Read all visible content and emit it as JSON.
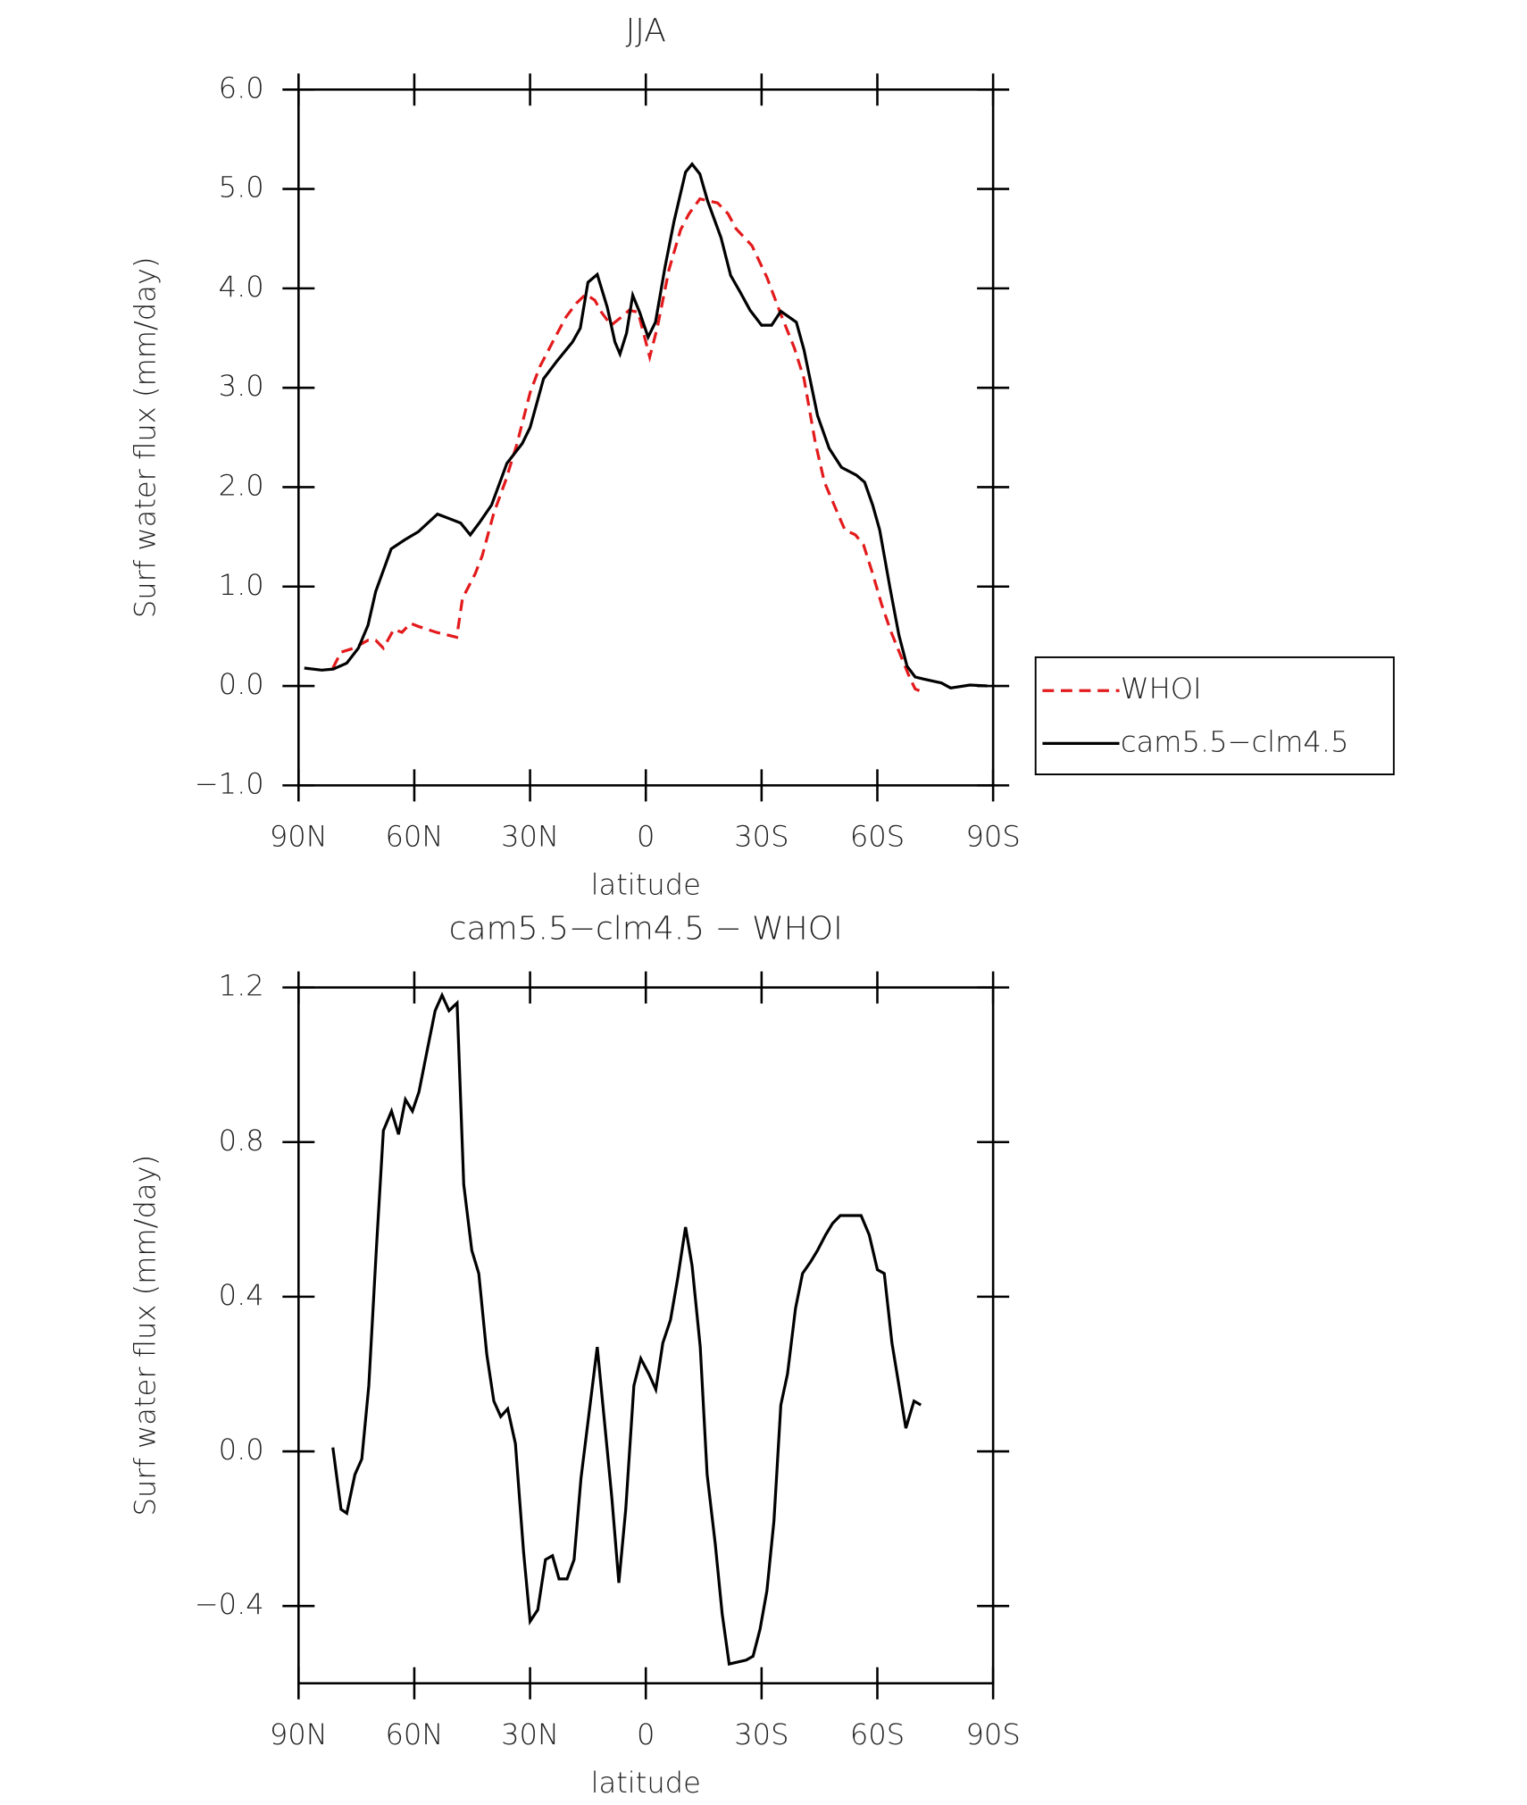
{
  "chart_data": [
    {
      "type": "line",
      "title": "JJA",
      "xlabel": "latitude",
      "ylabel": "Surf water flux (mm/day)",
      "xlim": [
        90,
        -90
      ],
      "xticks": [
        {
          "value": 90,
          "label": "90N"
        },
        {
          "value": 60,
          "label": "60N"
        },
        {
          "value": 30,
          "label": "30N"
        },
        0,
        {
          "value": -30,
          "label": "30S"
        },
        {
          "value": -60,
          "label": "60S"
        },
        {
          "value": -90,
          "label": "90S"
        }
      ],
      "ylim": [
        -1,
        6
      ],
      "yticks": [
        {
          "value": 6,
          "label": "6.0"
        },
        {
          "value": 5,
          "label": "5.0"
        },
        {
          "value": 4,
          "label": "4.0"
        },
        {
          "value": 3,
          "label": "3.0"
        },
        {
          "value": 2,
          "label": "2.0"
        },
        {
          "value": 1,
          "label": "1.0"
        },
        {
          "value": 0,
          "label": "0.0"
        },
        {
          "value": -1,
          "label": "−1.0"
        }
      ],
      "legend": "right",
      "series": [
        {
          "name": "WHOI",
          "color": "#e31a1c",
          "line_style": "dashed",
          "x": [
            81.1,
            79,
            75.7,
            72,
            70,
            68,
            65.3,
            63.2,
            61,
            59,
            54.3,
            49,
            47.5,
            44.2,
            42.4,
            39.4,
            36.4,
            33.5,
            30,
            27.5,
            24,
            20.7,
            18,
            15.6,
            13.2,
            11.5,
            9,
            6.7,
            4.3,
            2,
            -1,
            -3,
            -6,
            -9,
            -11.2,
            -14,
            -18.6,
            -21.3,
            -23.4,
            -27.5,
            -31.4,
            -35,
            -38.5,
            -41,
            -43.9,
            -46.3,
            -49.8,
            -51.6,
            -54.3,
            -56.4,
            -58.8,
            -61.1,
            -63.5,
            -65.9,
            -68.3,
            -69.8,
            -71.6
          ],
          "values": [
            0.18,
            0.34,
            0.38,
            0.46,
            0.46,
            0.38,
            0.57,
            0.54,
            0.63,
            0.6,
            0.54,
            0.49,
            0.88,
            1.13,
            1.31,
            1.74,
            2.06,
            2.42,
            2.95,
            3.21,
            3.47,
            3.71,
            3.85,
            3.94,
            3.88,
            3.76,
            3.63,
            3.7,
            3.78,
            3.76,
            3.31,
            3.61,
            4.19,
            4.59,
            4.75,
            4.9,
            4.86,
            4.75,
            4.6,
            4.43,
            4.11,
            3.74,
            3.4,
            3.09,
            2.45,
            2.05,
            1.73,
            1.57,
            1.52,
            1.42,
            1.13,
            0.82,
            0.55,
            0.32,
            0.09,
            -0.03,
            -0.06
          ]
        },
        {
          "name": "cam5.5−clm4.5",
          "color": "#000000",
          "line_style": "solid",
          "x": [
            88.5,
            84,
            81,
            77.5,
            74.5,
            72,
            70,
            66,
            62.5,
            59,
            54,
            52,
            48,
            45.5,
            43,
            40,
            36,
            32,
            30,
            26.5,
            23,
            19,
            17,
            15,
            12.6,
            10,
            8,
            6.7,
            5,
            3.4,
            1.6,
            -0.6,
            -2.5,
            -5,
            -7.3,
            -10.3,
            -12,
            -14,
            -16,
            -19.5,
            -22,
            -24.5,
            -27,
            -30,
            -32.6,
            -35,
            -39,
            -41,
            -44.5,
            -47.5,
            -50.7,
            -54.6,
            -56.7,
            -58.8,
            -60.6,
            -63.3,
            -65.6,
            -67.7,
            -69.8,
            -72,
            -76.6,
            -79,
            -84,
            -88.5
          ],
          "values": [
            0.18,
            0.16,
            0.17,
            0.23,
            0.38,
            0.61,
            0.95,
            1.38,
            1.47,
            1.55,
            1.73,
            1.7,
            1.64,
            1.52,
            1.65,
            1.82,
            2.24,
            2.44,
            2.6,
            3.09,
            3.27,
            3.46,
            3.6,
            4.06,
            4.14,
            3.81,
            3.46,
            3.34,
            3.55,
            3.93,
            3.76,
            3.51,
            3.66,
            4.22,
            4.67,
            5.17,
            5.25,
            5.15,
            4.88,
            4.51,
            4.13,
            3.96,
            3.78,
            3.63,
            3.63,
            3.77,
            3.66,
            3.38,
            2.72,
            2.39,
            2.2,
            2.12,
            2.05,
            1.82,
            1.57,
            0.98,
            0.51,
            0.2,
            0.09,
            0.07,
            0.03,
            -0.02,
            0.01,
            0
          ]
        }
      ]
    },
    {
      "type": "line",
      "title": "cam5.5−clm4.5 − WHOI",
      "xlabel": "latitude",
      "ylabel": "Surf water flux (mm/day)",
      "xlim": [
        90,
        -90
      ],
      "xticks": [
        {
          "value": 90,
          "label": "90N"
        },
        {
          "value": 60,
          "label": "60N"
        },
        {
          "value": 30,
          "label": "30N"
        },
        0,
        {
          "value": -30,
          "label": "30S"
        },
        {
          "value": -60,
          "label": "60S"
        },
        {
          "value": -90,
          "label": "90S"
        }
      ],
      "ylim": [
        -0.6,
        1.2
      ],
      "yticks": [
        1.2,
        0.8,
        0.4,
        {
          "value": 0,
          "label": "0.0"
        },
        {
          "value": -0.4,
          "label": "−0.4"
        }
      ],
      "series": [
        {
          "color": "#000000",
          "line_style": "solid",
          "x": [
            81.1,
            79,
            77.5,
            75.4,
            73.6,
            71.8,
            69.8,
            68,
            65.9,
            64.1,
            62.3,
            60.5,
            58.8,
            56.4,
            54.6,
            52.8,
            51,
            48.9,
            47.2,
            45.1,
            43.3,
            41.2,
            39.4,
            37.6,
            35.8,
            33.8,
            31.7,
            30,
            28,
            26,
            24.2,
            22.5,
            20.4,
            18.6,
            16.8,
            12.6,
            8.8,
            7,
            5.2,
            3.1,
            1.3,
            -0.8,
            -2.6,
            -4.4,
            -6.4,
            -8.3,
            -10.3,
            -12,
            -14.1,
            -15.9,
            -18,
            -19.8,
            -21.6,
            -26,
            -27.8,
            -29.6,
            -31.4,
            -33.2,
            -35,
            -36.7,
            -38.8,
            -40.6,
            -42.7,
            -44.5,
            -46.6,
            -48.4,
            -50.4,
            -52.2,
            -54,
            -55.8,
            -57.9,
            -60,
            -61.8,
            -63.8,
            -65.6,
            -67.4,
            -69.5,
            -71.3
          ],
          "values": [
            0.01,
            -0.15,
            -0.16,
            -0.06,
            -0.02,
            0.17,
            0.53,
            0.83,
            0.88,
            0.82,
            0.91,
            0.88,
            0.93,
            1.05,
            1.14,
            1.18,
            1.14,
            1.16,
            0.69,
            0.52,
            0.46,
            0.25,
            0.13,
            0.09,
            0.11,
            0.02,
            -0.26,
            -0.44,
            -0.41,
            -0.28,
            -0.27,
            -0.33,
            -0.33,
            -0.28,
            -0.07,
            0.27,
            -0.12,
            -0.34,
            -0.15,
            0.17,
            0.24,
            0.2,
            0.16,
            0.28,
            0.34,
            0.45,
            0.58,
            0.48,
            0.27,
            -0.06,
            -0.24,
            -0.42,
            -0.55,
            -0.54,
            -0.53,
            -0.46,
            -0.36,
            -0.18,
            0.12,
            0.2,
            0.37,
            0.46,
            0.49,
            0.52,
            0.56,
            0.59,
            0.61,
            0.61,
            0.61,
            0.61,
            0.56,
            0.47,
            0.46,
            0.28,
            0.17,
            0.06,
            0.13,
            0.12
          ]
        }
      ]
    }
  ]
}
